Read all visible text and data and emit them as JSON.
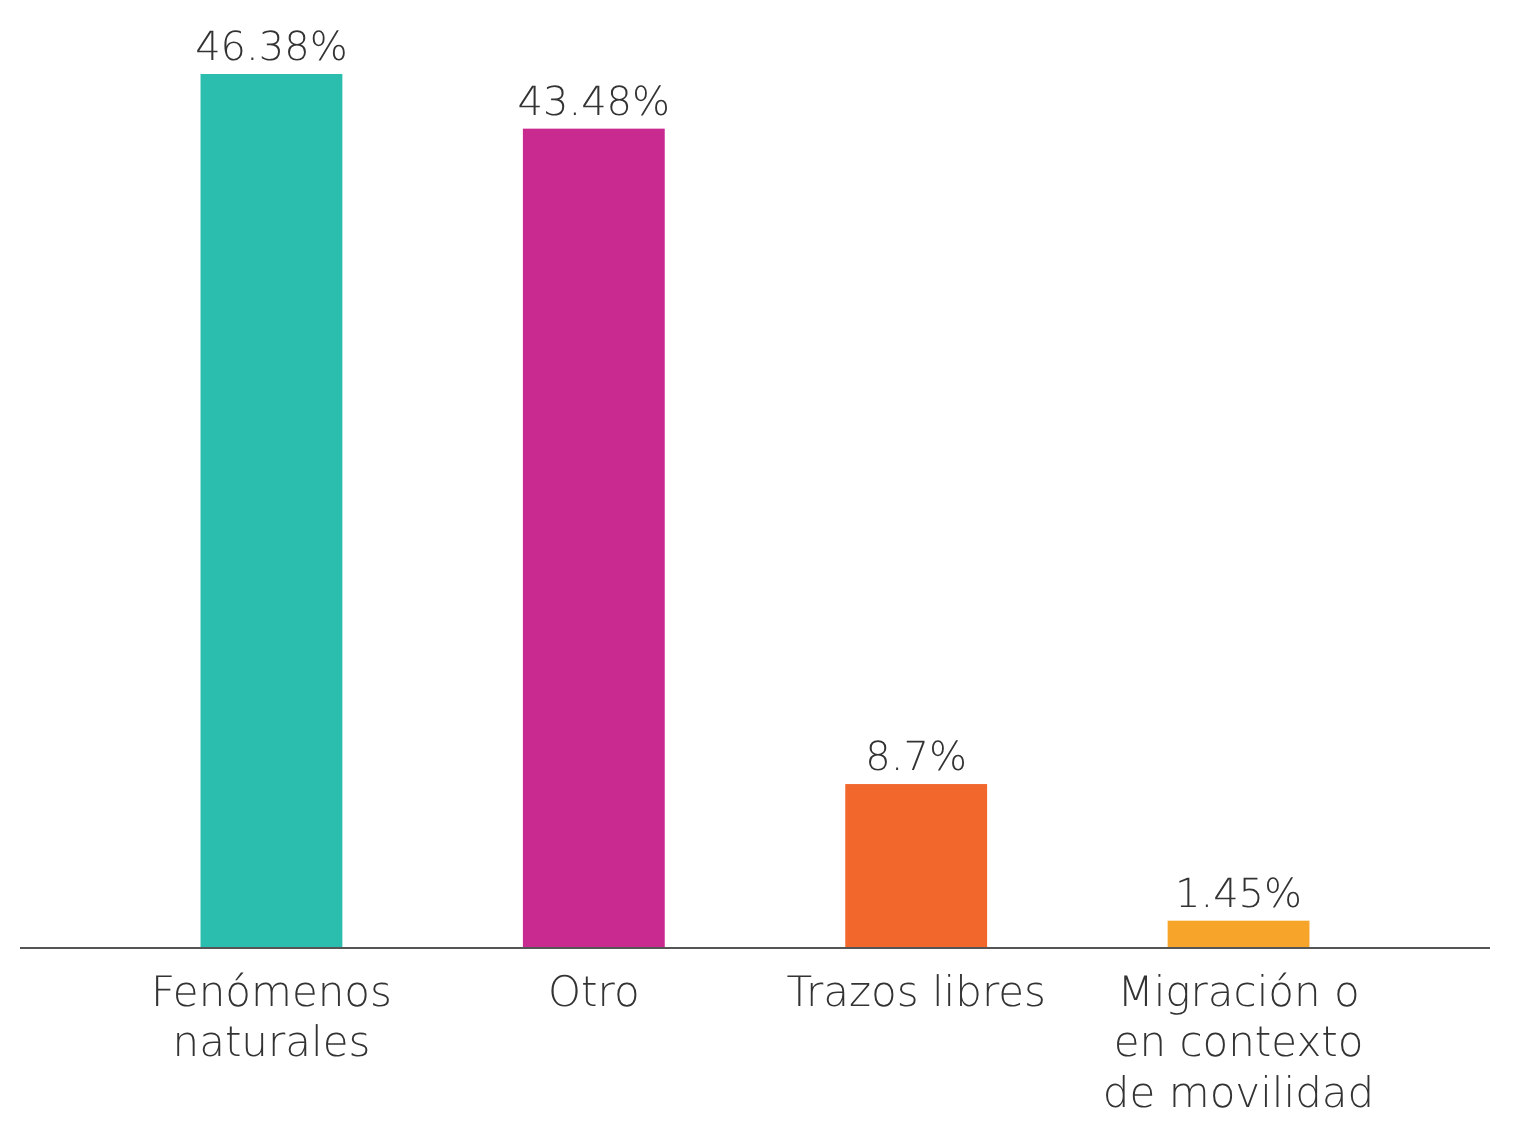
{
  "chart_data": {
    "type": "bar",
    "categories": [
      "Fenómenos naturales",
      "Otro",
      "Trazos libres",
      "Migración o en contexto de movilidad"
    ],
    "values": [
      46.38,
      43.48,
      8.7,
      1.45
    ],
    "colors": [
      "#2bbdad",
      "#c92a8f",
      "#f2672c",
      "#f6a52a"
    ],
    "value_labels": [
      "46.38%",
      "43.48%",
      "8.7%",
      "1.45%"
    ]
  }
}
